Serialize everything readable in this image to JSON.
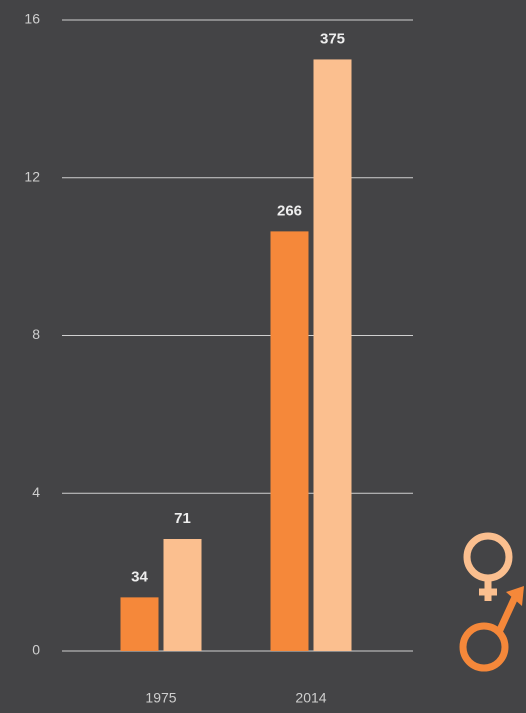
{
  "chart_data": {
    "type": "bar",
    "categories": [
      "1975",
      "2014"
    ],
    "series": [
      {
        "color": "#f5883a",
        "values": [
          1.36,
          10.64
        ],
        "value_labels": [
          "34",
          "266"
        ]
      },
      {
        "color": "#fbbf8f",
        "values": [
          2.84,
          15.0
        ],
        "value_labels": [
          "71",
          "375"
        ]
      }
    ],
    "ylim": [
      0,
      16
    ],
    "yticks": [
      0,
      4,
      8,
      12,
      16
    ],
    "grid": true
  }
}
